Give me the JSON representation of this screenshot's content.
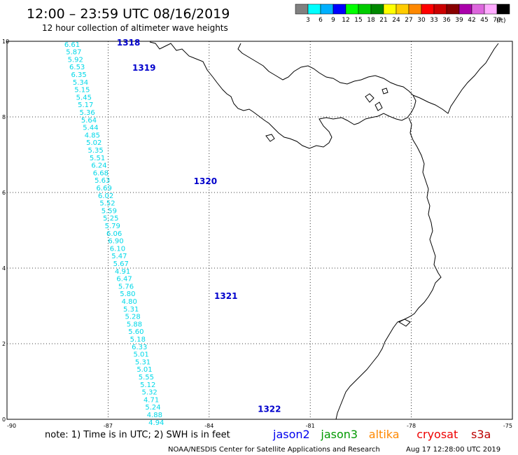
{
  "header": {
    "title": "12:00 – 23:59 UTC 08/16/2019",
    "subtitle": "12 hour collection of altimeter wave heights"
  },
  "legend": {
    "unit": "(ft)",
    "bins": [
      {
        "label": "3",
        "color": "#808080"
      },
      {
        "label": "6",
        "color": "#00ffff"
      },
      {
        "label": "9",
        "color": "#00b0ff"
      },
      {
        "label": "12",
        "color": "#0000ff"
      },
      {
        "label": "15",
        "color": "#00ff00"
      },
      {
        "label": "18",
        "color": "#00cc00"
      },
      {
        "label": "21",
        "color": "#008800"
      },
      {
        "label": "24",
        "color": "#ffff00"
      },
      {
        "label": "27",
        "color": "#ffcc00"
      },
      {
        "label": "30",
        "color": "#ff8800"
      },
      {
        "label": "33",
        "color": "#ff0000"
      },
      {
        "label": "36",
        "color": "#cc0000"
      },
      {
        "label": "39",
        "color": "#880000"
      },
      {
        "label": "42",
        "color": "#aa00aa"
      },
      {
        "label": "45",
        "color": "#dd66dd"
      },
      {
        "label": "70",
        "color": "#ffaaff"
      },
      {
        "label": "",
        "color": "#000000"
      }
    ]
  },
  "map": {
    "lon_range": [
      -90,
      -75
    ],
    "lat_range": [
      0,
      10
    ],
    "x_ticks": [
      {
        "lon": -90,
        "label": "-90"
      },
      {
        "lon": -87,
        "label": "-87"
      },
      {
        "lon": -84,
        "label": "-84"
      },
      {
        "lon": -81,
        "label": "-81"
      },
      {
        "lon": -78,
        "label": "-78"
      },
      {
        "lon": -75,
        "label": "-75"
      }
    ],
    "y_ticks": [
      {
        "lat": 10,
        "label": "10"
      },
      {
        "lat": 8,
        "label": "8"
      },
      {
        "lat": 6,
        "label": "6"
      },
      {
        "lat": 4,
        "label": "4"
      },
      {
        "lat": 2,
        "label": "2"
      },
      {
        "lat": 0,
        "label": "0"
      }
    ],
    "grid": true,
    "obs_color": "#00d8e8",
    "pass_color": "#0000cc",
    "track": [
      {
        "lon": -88.3,
        "lat": 9.93,
        "swh": "6.61"
      },
      {
        "lon": -88.25,
        "lat": 9.73,
        "swh": "5.87"
      },
      {
        "lon": -88.2,
        "lat": 9.53,
        "swh": "5.92"
      },
      {
        "lon": -88.15,
        "lat": 9.33,
        "swh": "6.53"
      },
      {
        "lon": -88.1,
        "lat": 9.13,
        "swh": "6.35"
      },
      {
        "lon": -88.05,
        "lat": 8.93,
        "swh": "5.34"
      },
      {
        "lon": -88.0,
        "lat": 8.73,
        "swh": "5.15"
      },
      {
        "lon": -87.95,
        "lat": 8.53,
        "swh": "5.45"
      },
      {
        "lon": -87.9,
        "lat": 8.33,
        "swh": "5.17"
      },
      {
        "lon": -87.85,
        "lat": 8.13,
        "swh": "5.36"
      },
      {
        "lon": -87.8,
        "lat": 7.93,
        "swh": "5.64"
      },
      {
        "lon": -87.75,
        "lat": 7.73,
        "swh": "5.44"
      },
      {
        "lon": -87.7,
        "lat": 7.53,
        "swh": "4.85"
      },
      {
        "lon": -87.65,
        "lat": 7.33,
        "swh": "5.02"
      },
      {
        "lon": -87.6,
        "lat": 7.13,
        "swh": "5.35"
      },
      {
        "lon": -87.55,
        "lat": 6.93,
        "swh": "5.51"
      },
      {
        "lon": -87.5,
        "lat": 6.73,
        "swh": "6.24"
      },
      {
        "lon": -87.45,
        "lat": 6.53,
        "swh": "6.68"
      },
      {
        "lon": -87.4,
        "lat": 6.33,
        "swh": "5.63"
      },
      {
        "lon": -87.35,
        "lat": 6.13,
        "swh": "6.69"
      },
      {
        "lon": -87.3,
        "lat": 5.93,
        "swh": "6.02"
      },
      {
        "lon": -87.25,
        "lat": 5.73,
        "swh": "5.52"
      },
      {
        "lon": -87.2,
        "lat": 5.53,
        "swh": "5.59"
      },
      {
        "lon": -87.15,
        "lat": 5.33,
        "swh": "5.25"
      },
      {
        "lon": -87.1,
        "lat": 5.13,
        "swh": "5.79"
      },
      {
        "lon": -87.05,
        "lat": 4.93,
        "swh": "6.06"
      },
      {
        "lon": -87.0,
        "lat": 4.73,
        "swh": "6.90"
      },
      {
        "lon": -86.95,
        "lat": 4.53,
        "swh": "6.10"
      },
      {
        "lon": -86.9,
        "lat": 4.33,
        "swh": "5.47"
      },
      {
        "lon": -86.85,
        "lat": 4.13,
        "swh": "5.67"
      },
      {
        "lon": -86.8,
        "lat": 3.93,
        "swh": "4.91"
      },
      {
        "lon": -86.75,
        "lat": 3.73,
        "swh": "6.47"
      },
      {
        "lon": -86.7,
        "lat": 3.53,
        "swh": "5.76"
      },
      {
        "lon": -86.65,
        "lat": 3.33,
        "swh": "5.80"
      },
      {
        "lon": -86.6,
        "lat": 3.13,
        "swh": "4.80"
      },
      {
        "lon": -86.55,
        "lat": 2.93,
        "swh": "5.31"
      },
      {
        "lon": -86.5,
        "lat": 2.73,
        "swh": "5.28"
      },
      {
        "lon": -86.45,
        "lat": 2.53,
        "swh": "5.88"
      },
      {
        "lon": -86.4,
        "lat": 2.33,
        "swh": "5.60"
      },
      {
        "lon": -86.35,
        "lat": 2.13,
        "swh": "5.18"
      },
      {
        "lon": -86.3,
        "lat": 1.93,
        "swh": "6.33"
      },
      {
        "lon": -86.25,
        "lat": 1.73,
        "swh": "5.01"
      },
      {
        "lon": -86.2,
        "lat": 1.53,
        "swh": "5.31"
      },
      {
        "lon": -86.15,
        "lat": 1.33,
        "swh": "5.01"
      },
      {
        "lon": -86.1,
        "lat": 1.13,
        "swh": "5.55"
      },
      {
        "lon": -86.05,
        "lat": 0.93,
        "swh": "5.12"
      },
      {
        "lon": -86.0,
        "lat": 0.73,
        "swh": "5.32"
      },
      {
        "lon": -85.95,
        "lat": 0.53,
        "swh": "4.71"
      },
      {
        "lon": -85.9,
        "lat": 0.33,
        "swh": "5.24"
      },
      {
        "lon": -85.85,
        "lat": 0.13,
        "swh": "4.88"
      },
      {
        "lon": -85.8,
        "lat": -0.07,
        "swh": "4.94"
      }
    ],
    "passes": [
      {
        "lon": -86.74,
        "lat": 9.96,
        "label": "1318"
      },
      {
        "lon": -86.28,
        "lat": 9.3,
        "label": "1319"
      },
      {
        "lon": -84.46,
        "lat": 6.3,
        "label": "1320"
      },
      {
        "lon": -83.85,
        "lat": 3.26,
        "label": "1321"
      },
      {
        "lon": -82.56,
        "lat": 0.27,
        "label": "1322"
      }
    ]
  },
  "footer": {
    "note": "note:  1) Time is in UTC;  2) SWH is in feet",
    "satellites": [
      {
        "name": "jason2",
        "color": "#0000ee"
      },
      {
        "name": "jason3",
        "color": "#009900"
      },
      {
        "name": "altika",
        "color": "#ff8800"
      },
      {
        "name": "cryosat",
        "color": "#ee0000"
      },
      {
        "name": "s3a",
        "color": "#bb0000"
      }
    ],
    "credit": "NOAA/NESDIS Center for Satellite Applications and Research",
    "timestamp": "Aug 17 12:28:00 UTC 2019"
  }
}
